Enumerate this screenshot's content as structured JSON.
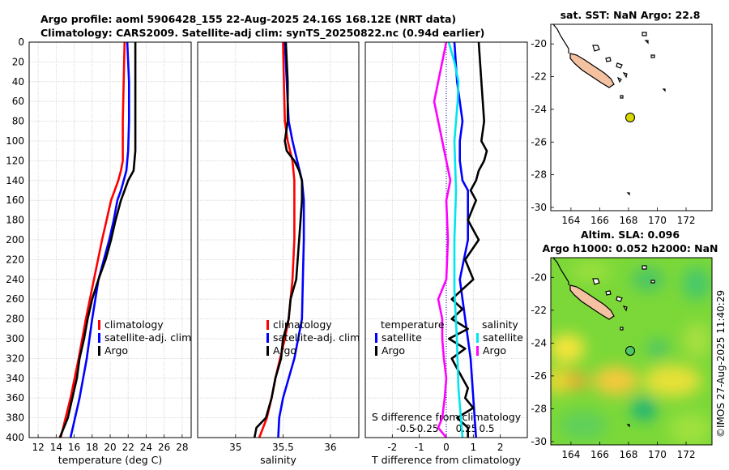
{
  "header": {
    "line1": "Argo profile: aoml 5906428_155 22-Aug-2025 24.16S 168.12E (NRT data)",
    "line2": "Climatology: CARS2009. Satellite-adj clim: synTS_20250822.nc (0.94d earlier)"
  },
  "colors": {
    "climatology": "#ff0000",
    "satellite": "#0000ff",
    "argo": "#000000",
    "sat_salinity": "#00e5ee",
    "argo_salinity": "#ff00ff",
    "land": "#f4c2a0",
    "float": "#d8d800"
  },
  "depth_ticks": [
    "0",
    "20",
    "40",
    "60",
    "80",
    "100",
    "120",
    "140",
    "160",
    "180",
    "200",
    "220",
    "240",
    "260",
    "280",
    "300",
    "320",
    "340",
    "360",
    "380",
    "400"
  ],
  "chart_data": [
    {
      "type": "line",
      "panel": "temperature",
      "xlabel": "temperature (deg C)",
      "ylabel": "depth",
      "xlim": [
        11,
        29
      ],
      "ylim": [
        400,
        0
      ],
      "x_ticks": [
        "12",
        "14",
        "16",
        "18",
        "20",
        "22",
        "24",
        "26",
        "28"
      ],
      "legend": [
        "climatology",
        "satellite-adj. clim",
        "Argo"
      ],
      "series": [
        {
          "name": "climatology",
          "color": "#ff0000",
          "depth": [
            0,
            40,
            80,
            120,
            130,
            140,
            150,
            160,
            180,
            200,
            240,
            280,
            320,
            360,
            400
          ],
          "values": [
            21.6,
            21.5,
            21.4,
            21.4,
            21.2,
            20.9,
            20.5,
            20.1,
            19.6,
            19.1,
            18.2,
            17.3,
            16.5,
            15.6,
            14.5
          ]
        },
        {
          "name": "satellite-adj. clim",
          "color": "#0000ff",
          "depth": [
            0,
            20,
            40,
            80,
            110,
            130,
            140,
            150,
            160,
            180,
            200,
            240,
            280,
            320,
            360,
            400
          ],
          "values": [
            21.9,
            22.0,
            22.1,
            22.1,
            22.0,
            21.8,
            21.5,
            21.2,
            20.8,
            20.4,
            19.9,
            18.7,
            18.0,
            17.4,
            16.6,
            15.6
          ]
        },
        {
          "name": "Argo",
          "color": "#000000",
          "depth": [
            0,
            20,
            40,
            80,
            110,
            130,
            140,
            150,
            160,
            180,
            200,
            220,
            240,
            260,
            280,
            300,
            320,
            340,
            360,
            380,
            400
          ],
          "values": [
            22.8,
            22.8,
            22.8,
            22.8,
            22.8,
            22.6,
            22.0,
            21.6,
            21.2,
            20.6,
            20.1,
            19.5,
            18.7,
            18.0,
            17.5,
            17.1,
            16.6,
            16.3,
            15.8,
            15.3,
            14.4
          ]
        }
      ]
    },
    {
      "type": "line",
      "panel": "salinity",
      "xlabel": "salinity",
      "ylabel": "depth",
      "xlim": [
        34.6,
        36.3
      ],
      "ylim": [
        400,
        0
      ],
      "x_ticks": [
        "35",
        "35.5",
        "36"
      ],
      "legend": [
        "climatology",
        "satellite-adj. clim",
        "Argo"
      ],
      "series": [
        {
          "name": "climatology",
          "color": "#ff0000",
          "depth": [
            0,
            40,
            80,
            100,
            120,
            140,
            160,
            200,
            240,
            280,
            300,
            320,
            340,
            360,
            380,
            400
          ],
          "values": [
            35.5,
            35.51,
            35.52,
            35.55,
            35.6,
            35.62,
            35.62,
            35.62,
            35.6,
            35.56,
            35.52,
            35.47,
            35.42,
            35.38,
            35.33,
            35.25
          ]
        },
        {
          "name": "satellite-adj. clim",
          "color": "#0000ff",
          "depth": [
            0,
            40,
            80,
            100,
            120,
            140,
            160,
            200,
            240,
            280,
            300,
            320,
            340,
            360,
            380,
            400
          ],
          "values": [
            35.52,
            35.54,
            35.56,
            35.6,
            35.65,
            35.7,
            35.72,
            35.72,
            35.71,
            35.7,
            35.66,
            35.62,
            35.56,
            35.5,
            35.46,
            35.45
          ]
        },
        {
          "name": "Argo",
          "color": "#000000",
          "depth": [
            0,
            40,
            80,
            100,
            110,
            120,
            130,
            140,
            160,
            200,
            240,
            260,
            280,
            300,
            320,
            340,
            360,
            380,
            390,
            400
          ],
          "values": [
            35.53,
            35.55,
            35.55,
            35.52,
            35.54,
            35.62,
            35.67,
            35.7,
            35.7,
            35.67,
            35.64,
            35.58,
            35.56,
            35.5,
            35.48,
            35.42,
            35.38,
            35.32,
            35.22,
            35.2
          ]
        }
      ]
    },
    {
      "type": "line",
      "panel": "difference",
      "xlabel": "T difference from climatology",
      "x2label": "S difference from climatology",
      "ylabel": "depth",
      "xlim": [
        -3,
        3
      ],
      "ylim": [
        400,
        0
      ],
      "x_ticks": [
        "-2",
        "-1",
        "0",
        "1",
        "2"
      ],
      "x2_ticks": [
        "-0.5",
        "-0.25",
        "0.25",
        "0.5"
      ],
      "legend_temperature": [
        "temperature",
        "satellite",
        "Argo"
      ],
      "legend_salinity": [
        "salinity",
        "satellite",
        "Argo"
      ],
      "series": [
        {
          "name": "temperature satellite",
          "color": "#0000ff",
          "depth": [
            0,
            40,
            80,
            100,
            120,
            140,
            150,
            200,
            240,
            280,
            320,
            360,
            400
          ],
          "values": [
            0.3,
            0.4,
            0.6,
            0.5,
            0.5,
            0.6,
            0.8,
            0.8,
            0.5,
            0.7,
            0.9,
            1.0,
            1.1
          ]
        },
        {
          "name": "temperature Argo",
          "color": "#000000",
          "depth": [
            0,
            40,
            80,
            100,
            110,
            120,
            130,
            140,
            150,
            160,
            180,
            200,
            220,
            240,
            260,
            270,
            280,
            290,
            300,
            310,
            320,
            330,
            340,
            350,
            360,
            370,
            380,
            390,
            400
          ],
          "values": [
            1.2,
            1.3,
            1.4,
            1.3,
            1.5,
            1.4,
            1.2,
            1.1,
            0.9,
            1.1,
            0.8,
            1.2,
            0.7,
            1.0,
            0.2,
            0.6,
            0.2,
            0.8,
            0.1,
            0.7,
            0.2,
            0.4,
            0.6,
            0.8,
            0.7,
            1.0,
            0.4,
            0.8,
            0.8
          ]
        },
        {
          "name": "salinity satellite",
          "color": "#00e5ee",
          "depth": [
            0,
            20,
            40,
            60,
            80,
            100,
            150,
            200,
            250,
            300,
            350,
            400
          ],
          "values": [
            0.03,
            0.1,
            0.15,
            0.14,
            0.12,
            0.1,
            0.12,
            0.1,
            0.1,
            0.13,
            0.15,
            0.2
          ]
        },
        {
          "name": "salinity Argo",
          "color": "#ff00ff",
          "depth": [
            0,
            20,
            40,
            60,
            80,
            100,
            120,
            140,
            160,
            200,
            240,
            260,
            280,
            300,
            320,
            340,
            360,
            380,
            390,
            400
          ],
          "values": [
            0.0,
            -0.05,
            -0.1,
            -0.15,
            -0.1,
            -0.05,
            0.0,
            0.05,
            0.0,
            0.02,
            0.0,
            -0.1,
            -0.05,
            -0.05,
            -0.03,
            0.0,
            -0.02,
            -0.05,
            -0.1,
            0.0
          ]
        }
      ]
    }
  ],
  "maps": {
    "sst": {
      "title": "sat. SST: NaN Argo: 22.8",
      "x_ticks": [
        "164",
        "166",
        "168",
        "170",
        "172"
      ],
      "y_ticks": [
        "-20",
        "-22",
        "-24",
        "-26",
        "-28",
        "-30"
      ]
    },
    "sla": {
      "title1": "Altim. SLA: 0.096",
      "title2": "Argo h1000: 0.052 h2000: NaN",
      "x_ticks": [
        "164",
        "166",
        "168",
        "170",
        "172"
      ],
      "y_ticks": [
        "-20",
        "-22",
        "-24",
        "-26",
        "-28",
        "-30"
      ]
    }
  },
  "credit": "©IMOS 27-Aug-2025 11:40:29"
}
